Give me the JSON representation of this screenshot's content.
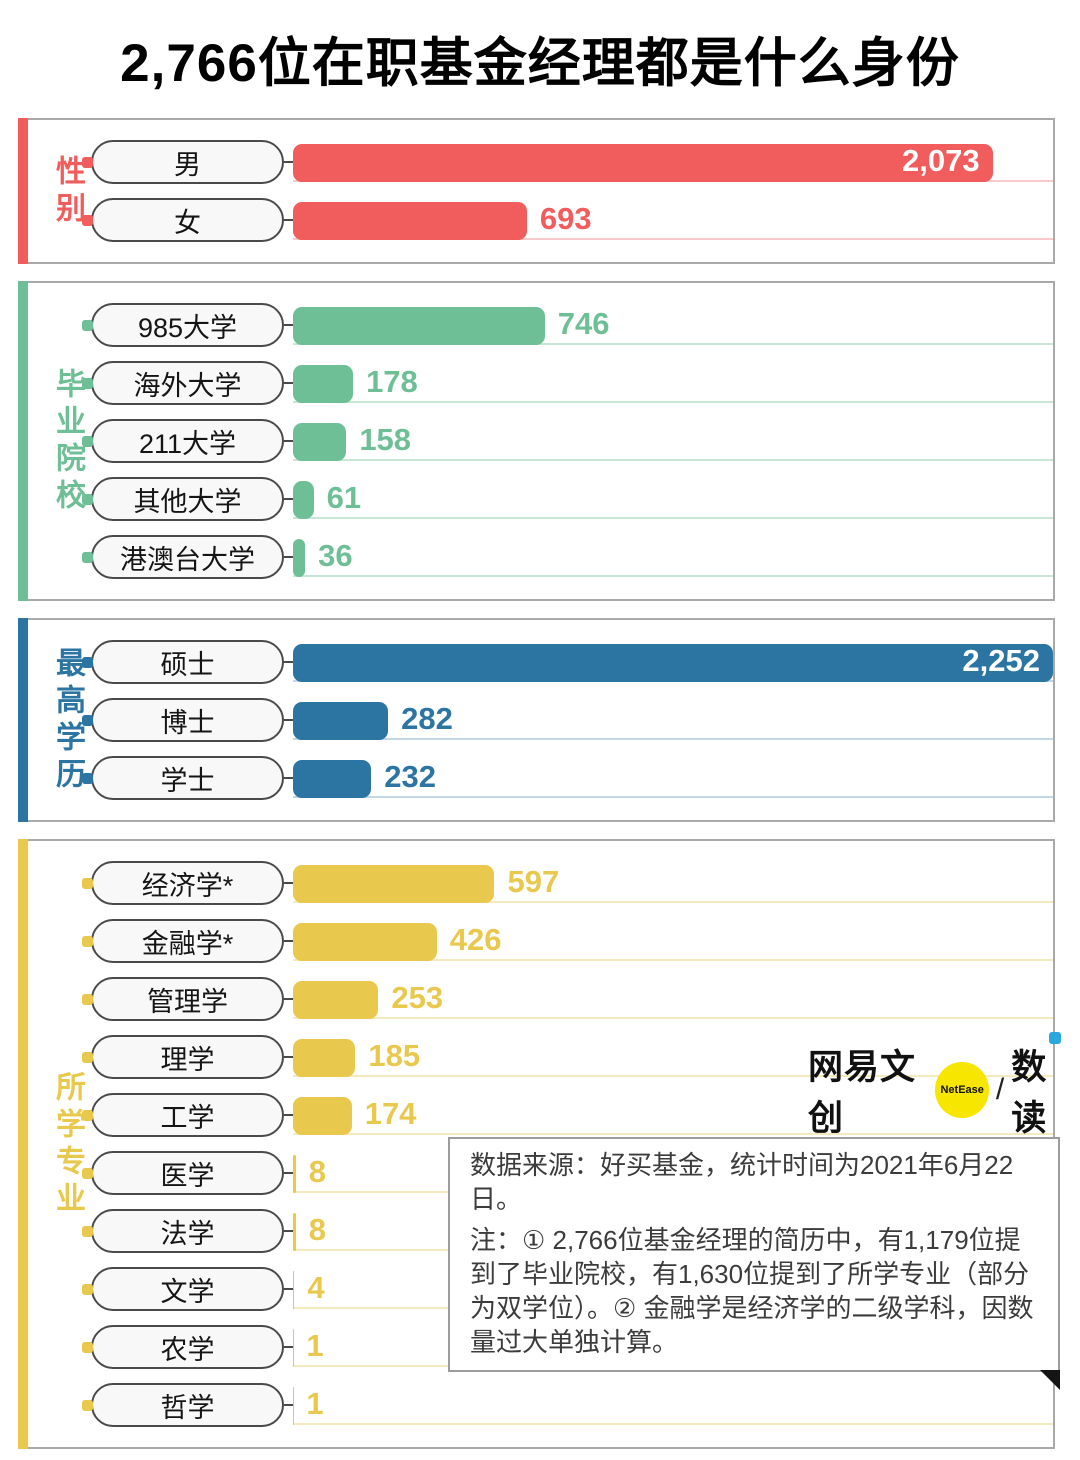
{
  "chart_data": {
    "type": "bar",
    "orientation": "horizontal",
    "title": "2,766位在职基金经理都是什么身份",
    "value_axis_max": 2252,
    "legend": "none",
    "sections": [
      {
        "name": "性别",
        "color": "#F05D5C",
        "line_color": "#FAC9C9",
        "rows": [
          {
            "label": "男",
            "value": 2073,
            "value_label": "2,073",
            "label_inside": true
          },
          {
            "label": "女",
            "value": 693,
            "value_label": "693",
            "label_inside": false
          }
        ]
      },
      {
        "name": "毕业院校",
        "color": "#6FBF96",
        "line_color": "#C8E5D6",
        "rows": [
          {
            "label": "985大学",
            "value": 746,
            "value_label": "746",
            "label_inside": false
          },
          {
            "label": "海外大学",
            "value": 178,
            "value_label": "178",
            "label_inside": false
          },
          {
            "label": "211大学",
            "value": 158,
            "value_label": "158",
            "label_inside": false
          },
          {
            "label": "其他大学",
            "value": 61,
            "value_label": "61",
            "label_inside": false
          },
          {
            "label": "港澳台大学",
            "value": 36,
            "value_label": "36",
            "label_inside": false
          }
        ]
      },
      {
        "name": "最高学历",
        "color": "#2C75A3",
        "line_color": "#C2D8E8",
        "rows": [
          {
            "label": "硕士",
            "value": 2252,
            "value_label": "2,252",
            "label_inside": true
          },
          {
            "label": "博士",
            "value": 282,
            "value_label": "282",
            "label_inside": false
          },
          {
            "label": "学士",
            "value": 232,
            "value_label": "232",
            "label_inside": false
          }
        ]
      },
      {
        "name": "所学专业",
        "color": "#E9C84E",
        "line_color": "#F5E9BE",
        "rows": [
          {
            "label": "经济学*",
            "value": 597,
            "value_label": "597",
            "label_inside": false
          },
          {
            "label": "金融学*",
            "value": 426,
            "value_label": "426",
            "label_inside": false
          },
          {
            "label": "管理学",
            "value": 253,
            "value_label": "253",
            "label_inside": false
          },
          {
            "label": "理学",
            "value": 185,
            "value_label": "185",
            "label_inside": false
          },
          {
            "label": "工学",
            "value": 174,
            "value_label": "174",
            "label_inside": false
          },
          {
            "label": "医学",
            "value": 8,
            "value_label": "8",
            "label_inside": false
          },
          {
            "label": "法学",
            "value": 8,
            "value_label": "8",
            "label_inside": false
          },
          {
            "label": "文学",
            "value": 4,
            "value_label": "4",
            "label_inside": false
          },
          {
            "label": "农学",
            "value": 1,
            "value_label": "1",
            "label_inside": false
          },
          {
            "label": "哲学",
            "value": 1,
            "value_label": "1",
            "label_inside": false
          }
        ]
      }
    ]
  },
  "logo": {
    "brand": "网易文创",
    "badge": "NetEase",
    "separator": "/",
    "sub_brand": "数读"
  },
  "note": {
    "source": "数据来源：好买基金，统计时间为2021年6月22日。",
    "annotation": "注：① 2,766位基金经理的简历中，有1,179位提到了毕业院校，有1,630位提到了所学专业（部分为双学位）。② 金融学是经济学的二级学科，因数量过大单独计算。"
  }
}
